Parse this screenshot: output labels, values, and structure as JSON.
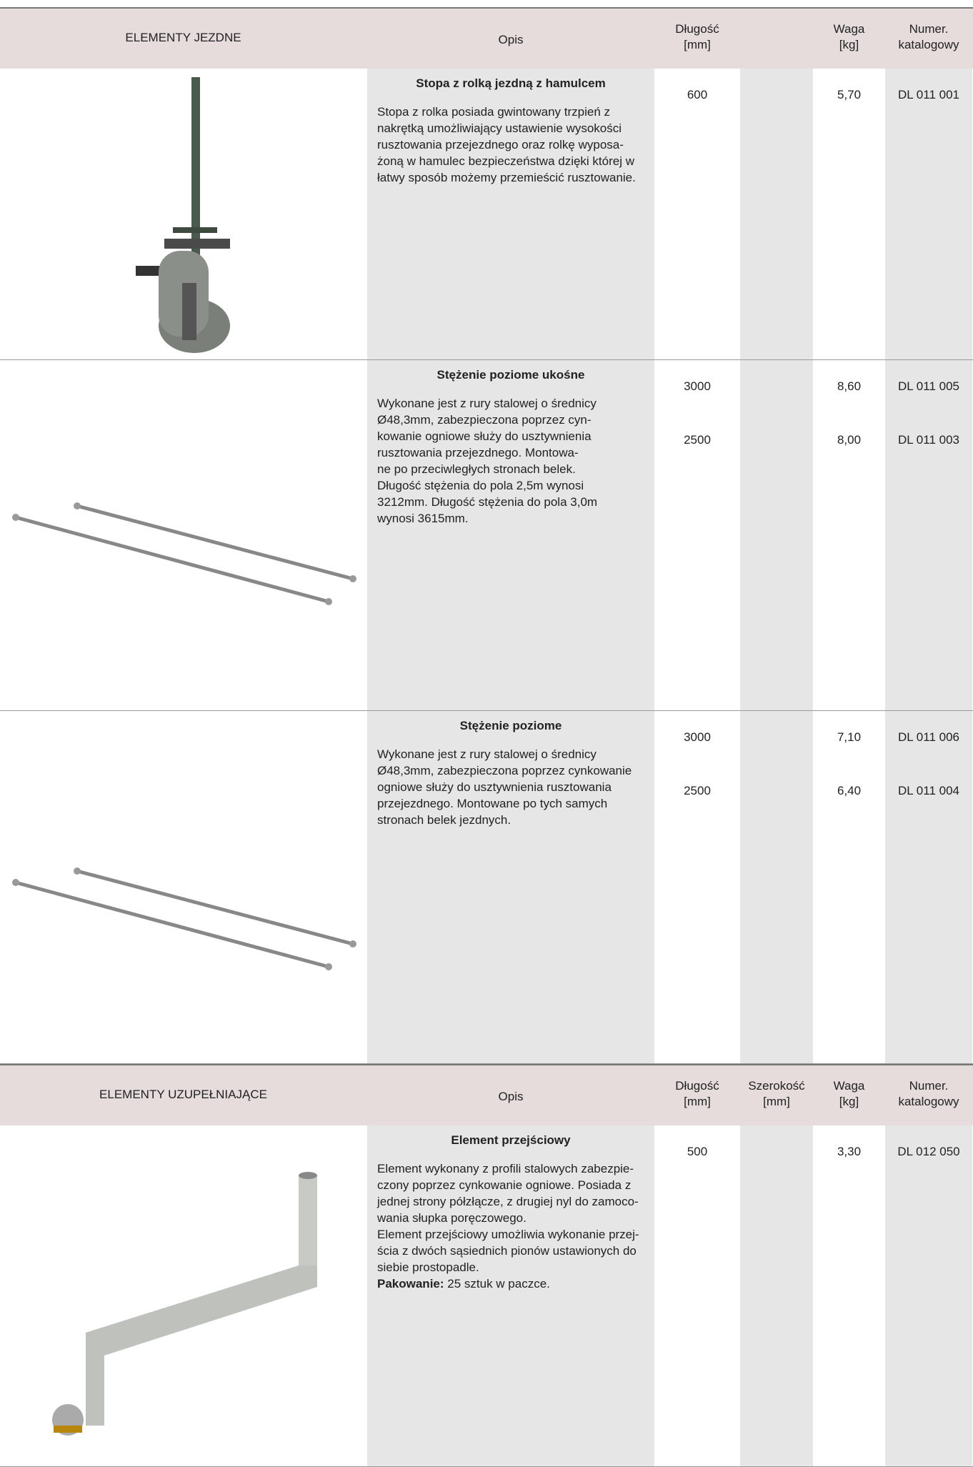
{
  "sections": [
    {
      "header": {
        "name": "ELEMENTY JEZDNE",
        "opis": "Opis",
        "dlugosc": [
          "Długość",
          "[mm]"
        ],
        "waga": [
          "Waga",
          "[kg]"
        ],
        "numer": [
          "Numer.",
          "katalogowy"
        ]
      },
      "items": [
        {
          "title": "Stopa z rolką jezdną z hamulcem",
          "description": [
            "Stopa z rolka posiada gwintowany trzpień z",
            "nakrętką umożliwiający ustawienie wysokości",
            "rusztowania przejezdnego oraz rolkę wyposa-",
            "żoną w hamulec bezpieczeństwa dzięki której w",
            "łatwy sposób możemy przemieścić rusztowanie."
          ],
          "entries": [
            {
              "dlugosc": "600",
              "waga": "5,70",
              "numer": "DL 011 001"
            }
          ]
        },
        {
          "title": "Stężenie poziome ukośne",
          "description": [
            "Wykonane jest z rury stalowej o średnicy",
            "Ø48,3mm, zabezpieczona poprzez cyn-",
            "kowanie ogniowe służy do usztywnienia",
            "rusztowania przejezdnego. Montowa-",
            "ne po przeciwległych stronach belek.",
            "Długość stężenia do pola 2,5m wynosi",
            "3212mm. Długość stężenia do pola 3,0m",
            "wynosi 3615mm."
          ],
          "entries": [
            {
              "dlugosc": "3000",
              "waga": "8,60",
              "numer": "DL 011 005"
            },
            {
              "dlugosc": "2500",
              "waga": "8,00",
              "numer": "DL 011 003"
            }
          ]
        },
        {
          "title": "Stężenie poziome",
          "description": [
            "Wykonane jest z rury stalowej o średnicy",
            "Ø48,3mm, zabezpieczona poprzez cynkowanie",
            "ogniowe służy do usztywnienia rusztowania",
            "przejezdnego. Montowane po tych samych",
            "stronach belek jezdnych."
          ],
          "entries": [
            {
              "dlugosc": "3000",
              "waga": "7,10",
              "numer": "DL 011 006"
            },
            {
              "dlugosc": "2500",
              "waga": "6,40",
              "numer": "DL 011 004"
            }
          ]
        }
      ]
    },
    {
      "header": {
        "name": "ELEMENTY UZUPEŁNIAJĄCE",
        "opis": "Opis",
        "dlugosc": [
          "Długość",
          "[mm]"
        ],
        "szerokosc": [
          "Szerokość",
          "[mm]"
        ],
        "waga": [
          "Waga",
          "[kg]"
        ],
        "numer": [
          "Numer.",
          "katalogowy"
        ]
      },
      "items": [
        {
          "title": "Element przejściowy",
          "description": [
            "Element wykonany z profili stalowych zabezpie-",
            "czony poprzez cynkowanie ogniowe. Posiada z",
            "jednej strony półzłącze, z drugiej nyl do zamoco-",
            "wania słupka poręczowego.",
            "Element przejściowy umożliwia wykonanie przej-",
            "ścia z dwóch sąsiednich pionów ustawionych do",
            "siebie prostopadle."
          ],
          "packing": {
            "label": "Pakowanie:",
            "text": " 25 sztuk w paczce."
          },
          "entries": [
            {
              "dlugosc": "500",
              "waga": "3,30",
              "numer": "DL 012 050"
            }
          ]
        }
      ]
    }
  ]
}
